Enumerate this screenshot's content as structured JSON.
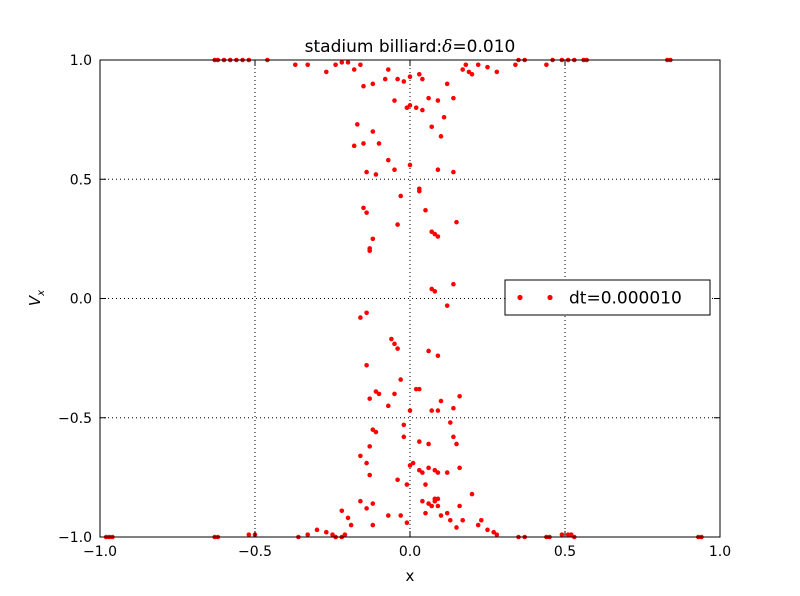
{
  "chart_data": {
    "type": "scatter",
    "title_prefix": "stadium billiard:",
    "title_symbol": "δ",
    "title_suffix": "=0.010",
    "xlabel": "x",
    "ylabel_main": "V",
    "ylabel_sub": "x",
    "xlim": [
      -1.0,
      1.0
    ],
    "ylim": [
      -1.0,
      1.0
    ],
    "xticks": [
      -1.0,
      -0.5,
      0.0,
      0.5,
      1.0
    ],
    "yticks": [
      -1.0,
      -0.5,
      0.0,
      0.5,
      1.0
    ],
    "xtick_labels": [
      "−1.0",
      "−0.5",
      "0.0",
      "0.5",
      "1.0"
    ],
    "ytick_labels": [
      "−1.0",
      "−0.5",
      "0.0",
      "0.5",
      "1.0"
    ],
    "grid": true,
    "legend_position": "center-right",
    "colors": {
      "series": "#ff0000",
      "grid": "#000000",
      "axes": "#000000"
    },
    "series": [
      {
        "name": "dt=0.000010",
        "points": [
          [
            -0.63,
            1.0
          ],
          [
            -0.62,
            1.0
          ],
          [
            -0.6,
            1.0
          ],
          [
            -0.58,
            1.0
          ],
          [
            -0.56,
            1.0
          ],
          [
            -0.54,
            1.0
          ],
          [
            -0.52,
            1.0
          ],
          [
            -0.46,
            1.0
          ],
          [
            -0.37,
            0.98
          ],
          [
            -0.33,
            0.98
          ],
          [
            -0.27,
            0.95
          ],
          [
            -0.24,
            0.98
          ],
          [
            -0.22,
            0.99
          ],
          [
            -0.2,
            0.99
          ],
          [
            -0.18,
            0.96
          ],
          [
            -0.16,
            0.98
          ],
          [
            -0.15,
            0.89
          ],
          [
            -0.12,
            0.9
          ],
          [
            -0.08,
            0.92
          ],
          [
            -0.07,
            0.96
          ],
          [
            -0.05,
            0.83
          ],
          [
            -0.04,
            0.92
          ],
          [
            -0.02,
            0.91
          ],
          [
            -0.01,
            0.8
          ],
          [
            0.0,
            0.81
          ],
          [
            0.0,
            0.93
          ],
          [
            0.02,
            0.8
          ],
          [
            0.03,
            0.94
          ],
          [
            0.04,
            0.92
          ],
          [
            0.04,
            0.79
          ],
          [
            0.06,
            0.84
          ],
          [
            0.07,
            0.72
          ],
          [
            0.09,
            0.83
          ],
          [
            0.1,
            0.68
          ],
          [
            0.11,
            0.76
          ],
          [
            0.12,
            0.9
          ],
          [
            0.14,
            0.84
          ],
          [
            0.17,
            0.96
          ],
          [
            0.18,
            0.98
          ],
          [
            0.19,
            0.95
          ],
          [
            0.2,
            0.94
          ],
          [
            0.22,
            0.98
          ],
          [
            0.25,
            0.97
          ],
          [
            0.28,
            0.95
          ],
          [
            0.34,
            0.98
          ],
          [
            0.35,
            1.0
          ],
          [
            0.37,
            1.0
          ],
          [
            0.44,
            0.98
          ],
          [
            0.46,
            1.0
          ],
          [
            0.49,
            1.0
          ],
          [
            0.51,
            1.0
          ],
          [
            0.53,
            1.0
          ],
          [
            0.56,
            1.0
          ],
          [
            0.57,
            1.0
          ],
          [
            0.83,
            1.0
          ],
          [
            0.84,
            1.0
          ],
          [
            -0.17,
            0.73
          ],
          [
            -0.15,
            0.65
          ],
          [
            -0.12,
            0.7
          ],
          [
            -0.1,
            0.65
          ],
          [
            -0.07,
            0.58
          ],
          [
            -0.05,
            0.54
          ],
          [
            -0.18,
            0.64
          ],
          [
            -0.14,
            0.53
          ],
          [
            -0.11,
            0.52
          ],
          [
            0.0,
            0.56
          ],
          [
            0.03,
            0.46
          ],
          [
            0.03,
            0.45
          ],
          [
            0.09,
            0.54
          ],
          [
            0.14,
            0.53
          ],
          [
            -0.15,
            0.38
          ],
          [
            -0.14,
            0.36
          ],
          [
            -0.12,
            0.25
          ],
          [
            -0.13,
            0.21
          ],
          [
            -0.13,
            0.2
          ],
          [
            -0.03,
            0.43
          ],
          [
            -0.04,
            0.31
          ],
          [
            0.05,
            0.37
          ],
          [
            0.07,
            0.28
          ],
          [
            0.08,
            0.27
          ],
          [
            0.09,
            0.26
          ],
          [
            0.15,
            0.32
          ],
          [
            0.07,
            0.04
          ],
          [
            0.08,
            0.03
          ],
          [
            0.12,
            -0.03
          ],
          [
            0.14,
            0.06
          ],
          [
            -0.16,
            -0.08
          ],
          [
            -0.14,
            -0.06
          ],
          [
            -0.06,
            -0.17
          ],
          [
            -0.05,
            -0.19
          ],
          [
            -0.04,
            -0.21
          ],
          [
            -0.14,
            -0.28
          ],
          [
            -0.13,
            -0.42
          ],
          [
            -0.11,
            -0.39
          ],
          [
            -0.05,
            -0.4
          ],
          [
            -0.03,
            -0.34
          ],
          [
            -0.1,
            -0.4
          ],
          [
            -0.07,
            -0.45
          ],
          [
            0.02,
            -0.38
          ],
          [
            0.03,
            -0.38
          ],
          [
            0.06,
            -0.22
          ],
          [
            0.09,
            -0.24
          ],
          [
            0.16,
            -0.41
          ],
          [
            0.14,
            -0.46
          ],
          [
            0.0,
            -0.47
          ],
          [
            0.07,
            -0.47
          ],
          [
            0.1,
            -0.43
          ],
          [
            0.09,
            -0.47
          ],
          [
            -0.12,
            -0.55
          ],
          [
            -0.11,
            -0.56
          ],
          [
            -0.13,
            -0.62
          ],
          [
            -0.02,
            -0.53
          ],
          [
            0.13,
            -0.52
          ],
          [
            -0.16,
            -0.66
          ],
          [
            -0.14,
            -0.69
          ],
          [
            -0.13,
            -0.74
          ],
          [
            -0.02,
            -0.58
          ],
          [
            0.03,
            -0.6
          ],
          [
            0.06,
            -0.61
          ],
          [
            0.14,
            -0.58
          ],
          [
            0.15,
            -0.61
          ],
          [
            0.16,
            -0.71
          ],
          [
            -0.04,
            -0.76
          ],
          [
            0.0,
            -0.7
          ],
          [
            0.01,
            -0.69
          ],
          [
            0.03,
            -0.72
          ],
          [
            0.04,
            -0.73
          ],
          [
            0.06,
            -0.71
          ],
          [
            0.08,
            -0.72
          ],
          [
            0.09,
            -0.73
          ],
          [
            0.12,
            -0.73
          ],
          [
            -0.01,
            -0.78
          ],
          [
            0.05,
            -0.78
          ],
          [
            0.08,
            -0.84
          ],
          [
            0.09,
            -0.84
          ],
          [
            0.08,
            -0.85
          ],
          [
            0.07,
            -0.87
          ],
          [
            -0.16,
            -0.85
          ],
          [
            -0.14,
            -0.88
          ],
          [
            -0.12,
            -0.86
          ],
          [
            0.04,
            -0.85
          ],
          [
            0.06,
            -0.86
          ],
          [
            0.09,
            -0.87
          ],
          [
            0.1,
            -0.91
          ],
          [
            0.12,
            -0.9
          ],
          [
            0.13,
            -0.93
          ],
          [
            0.16,
            -0.87
          ],
          [
            0.17,
            -0.93
          ],
          [
            0.2,
            -0.82
          ],
          [
            -0.22,
            -0.89
          ],
          [
            -0.2,
            -0.92
          ],
          [
            -0.19,
            -0.95
          ],
          [
            -0.12,
            -0.95
          ],
          [
            -0.07,
            -0.91
          ],
          [
            -0.03,
            -0.91
          ],
          [
            -0.01,
            -0.94
          ],
          [
            0.05,
            -0.9
          ],
          [
            0.15,
            -0.96
          ],
          [
            0.22,
            -0.95
          ],
          [
            0.23,
            -0.93
          ],
          [
            0.25,
            -0.97
          ],
          [
            0.27,
            -0.98
          ],
          [
            0.28,
            -0.99
          ],
          [
            -0.27,
            -0.98
          ],
          [
            -0.25,
            -0.99
          ],
          [
            -0.24,
            -1.0
          ],
          [
            -0.22,
            -1.0
          ],
          [
            -0.21,
            -0.99
          ],
          [
            -0.3,
            -0.97
          ],
          [
            -0.33,
            -0.99
          ],
          [
            -0.36,
            -1.0
          ],
          [
            -0.52,
            -0.99
          ],
          [
            -0.5,
            -0.99
          ],
          [
            -0.63,
            -1.0
          ],
          [
            -0.62,
            -1.0
          ],
          [
            -0.98,
            -1.0
          ],
          [
            -0.97,
            -1.0
          ],
          [
            -0.96,
            -1.0
          ],
          [
            0.35,
            -1.0
          ],
          [
            0.37,
            -1.0
          ],
          [
            0.44,
            -1.0
          ],
          [
            0.45,
            -1.0
          ],
          [
            0.49,
            -0.99
          ],
          [
            0.51,
            -0.99
          ],
          [
            0.52,
            -0.99
          ],
          [
            0.53,
            -1.0
          ],
          [
            0.93,
            -1.0
          ],
          [
            0.94,
            -1.0
          ]
        ]
      }
    ]
  }
}
